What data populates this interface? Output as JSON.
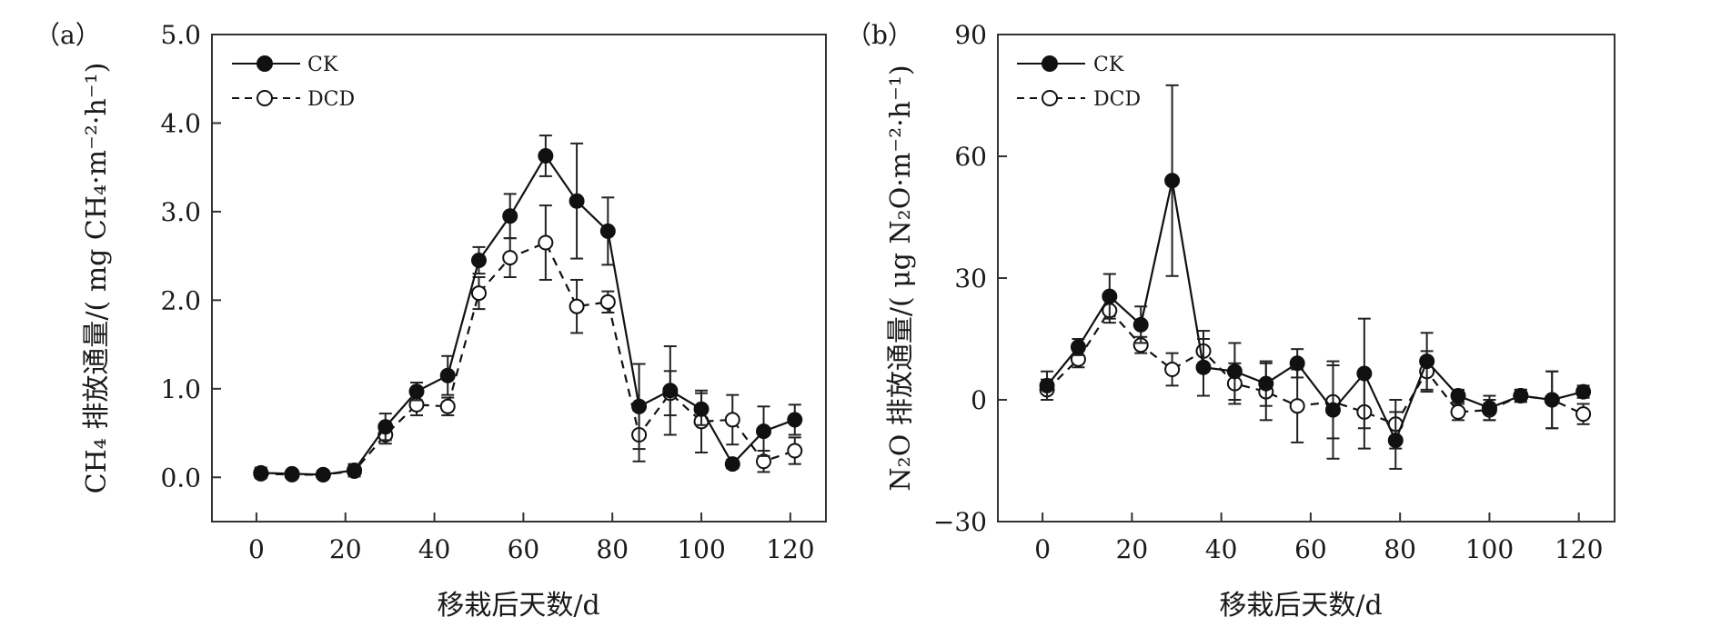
{
  "chart_data": [
    {
      "type": "line",
      "panel_label": "（a）",
      "title": "",
      "xlabel": "移栽后天数/d",
      "ylabel": "CH₄ 排放通量/( mg CH₄·m⁻²·h⁻¹)",
      "xlim": [
        -10,
        128
      ],
      "ylim": [
        -0.5,
        5.0
      ],
      "xticks": [
        0,
        20,
        40,
        60,
        80,
        100,
        120
      ],
      "yticks": [
        0.0,
        1.0,
        2.0,
        3.0,
        4.0,
        5.0
      ],
      "xtick_labels": [
        "0",
        "20",
        "40",
        "60",
        "80",
        "100",
        "120"
      ],
      "ytick_labels": [
        "0.0",
        "1.0",
        "2.0",
        "3.0",
        "4.0",
        "5.0"
      ],
      "legend_position": "top-left",
      "grid": false,
      "series": [
        {
          "name": "CK",
          "marker": "filled-circle",
          "line_style": "solid",
          "color": "#111111",
          "x": [
            1,
            8,
            15,
            22,
            29,
            36,
            43,
            50,
            57,
            65,
            72,
            79,
            86,
            93,
            100,
            107,
            114,
            121
          ],
          "y": [
            0.05,
            0.04,
            0.03,
            0.08,
            0.57,
            0.97,
            1.15,
            2.45,
            2.95,
            3.63,
            3.12,
            2.78,
            0.8,
            0.98,
            0.77,
            0.15,
            0.52,
            0.65
          ],
          "err": [
            0.06,
            0.04,
            0.04,
            0.07,
            0.15,
            0.1,
            0.22,
            0.15,
            0.25,
            0.23,
            0.65,
            0.38,
            0.48,
            0.5,
            0.18,
            0.05,
            0.28,
            0.17
          ]
        },
        {
          "name": "DCD",
          "marker": "open-circle",
          "line_style": "dashed",
          "color": "#111111",
          "x": [
            1,
            8,
            15,
            22,
            29,
            36,
            43,
            50,
            57,
            65,
            72,
            79,
            86,
            93,
            100,
            107,
            114,
            121
          ],
          "y": [
            0.04,
            0.03,
            0.03,
            0.07,
            0.48,
            0.82,
            0.8,
            2.08,
            2.48,
            2.65,
            1.93,
            1.98,
            0.48,
            0.95,
            0.63,
            0.65,
            0.18,
            0.3
          ],
          "err": [
            0.04,
            0.03,
            0.04,
            0.06,
            0.1,
            0.12,
            0.1,
            0.18,
            0.22,
            0.42,
            0.3,
            0.12,
            0.3,
            0.25,
            0.35,
            0.28,
            0.12,
            0.15
          ]
        }
      ]
    },
    {
      "type": "line",
      "panel_label": "（b）",
      "title": "",
      "xlabel": "移栽后天数/d",
      "ylabel": "N₂O 排放通量/( μg N₂O·m⁻²·h⁻¹)",
      "xlim": [
        -10,
        128
      ],
      "ylim": [
        -30,
        90
      ],
      "xticks": [
        0,
        20,
        40,
        60,
        80,
        100,
        120
      ],
      "yticks": [
        -30,
        0,
        30,
        60,
        90
      ],
      "xtick_labels": [
        "0",
        "20",
        "40",
        "60",
        "80",
        "100",
        "120"
      ],
      "ytick_labels": [
        "−30",
        "0",
        "30",
        "60",
        "90"
      ],
      "legend_position": "top-left",
      "grid": false,
      "series": [
        {
          "name": "CK",
          "marker": "filled-circle",
          "line_style": "solid",
          "color": "#111111",
          "x": [
            1,
            8,
            15,
            22,
            29,
            36,
            43,
            50,
            57,
            65,
            72,
            79,
            86,
            93,
            100,
            107,
            114,
            121
          ],
          "y": [
            3.5,
            13.0,
            25.5,
            18.5,
            54.0,
            8.0,
            7.0,
            4.0,
            9.0,
            -2.5,
            6.5,
            -10.0,
            9.5,
            1.0,
            -2.0,
            1.0,
            0.0,
            2.0
          ],
          "err": [
            3.5,
            2.0,
            5.5,
            4.5,
            23.5,
            7.0,
            7.0,
            5.5,
            3.5,
            12.0,
            13.5,
            7.0,
            7.0,
            1.5,
            3.0,
            1.5,
            7.0,
            1.5
          ]
        },
        {
          "name": "DCD",
          "marker": "open-circle",
          "line_style": "dashed",
          "color": "#111111",
          "x": [
            1,
            8,
            15,
            22,
            29,
            36,
            43,
            50,
            57,
            65,
            72,
            79,
            86,
            93,
            100,
            107,
            114,
            121
          ],
          "y": [
            2.5,
            10.0,
            22.0,
            13.5,
            7.5,
            12.0,
            4.0,
            2.0,
            -1.5,
            -0.5,
            -3.0,
            -6.0,
            7.0,
            -3.0,
            -2.5,
            1.0,
            0.0,
            -3.5
          ],
          "err": [
            2.5,
            2.0,
            3.0,
            2.0,
            4.0,
            5.0,
            5.0,
            7.0,
            9.0,
            9.0,
            9.0,
            6.0,
            5.0,
            2.0,
            2.5,
            1.5,
            7.0,
            2.5
          ]
        }
      ]
    }
  ]
}
